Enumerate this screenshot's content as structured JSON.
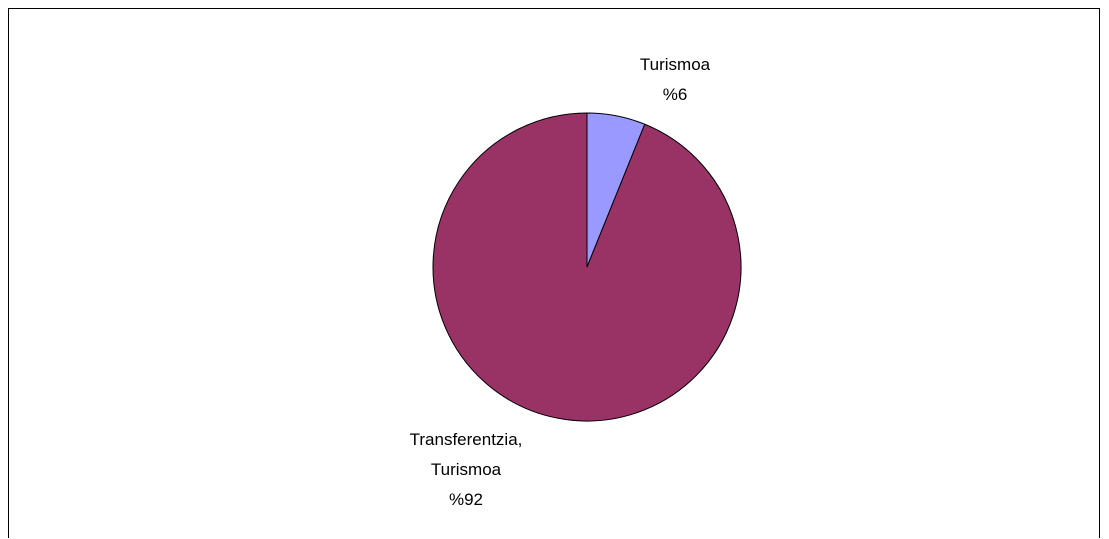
{
  "chart_data": {
    "type": "pie",
    "categories": [
      "Turismoa",
      "Transferentzia, Turismoa"
    ],
    "values": [
      6,
      92
    ],
    "value_labels": [
      "%6",
      "%92"
    ],
    "colors": [
      "#9999ff",
      "#993366"
    ]
  }
}
